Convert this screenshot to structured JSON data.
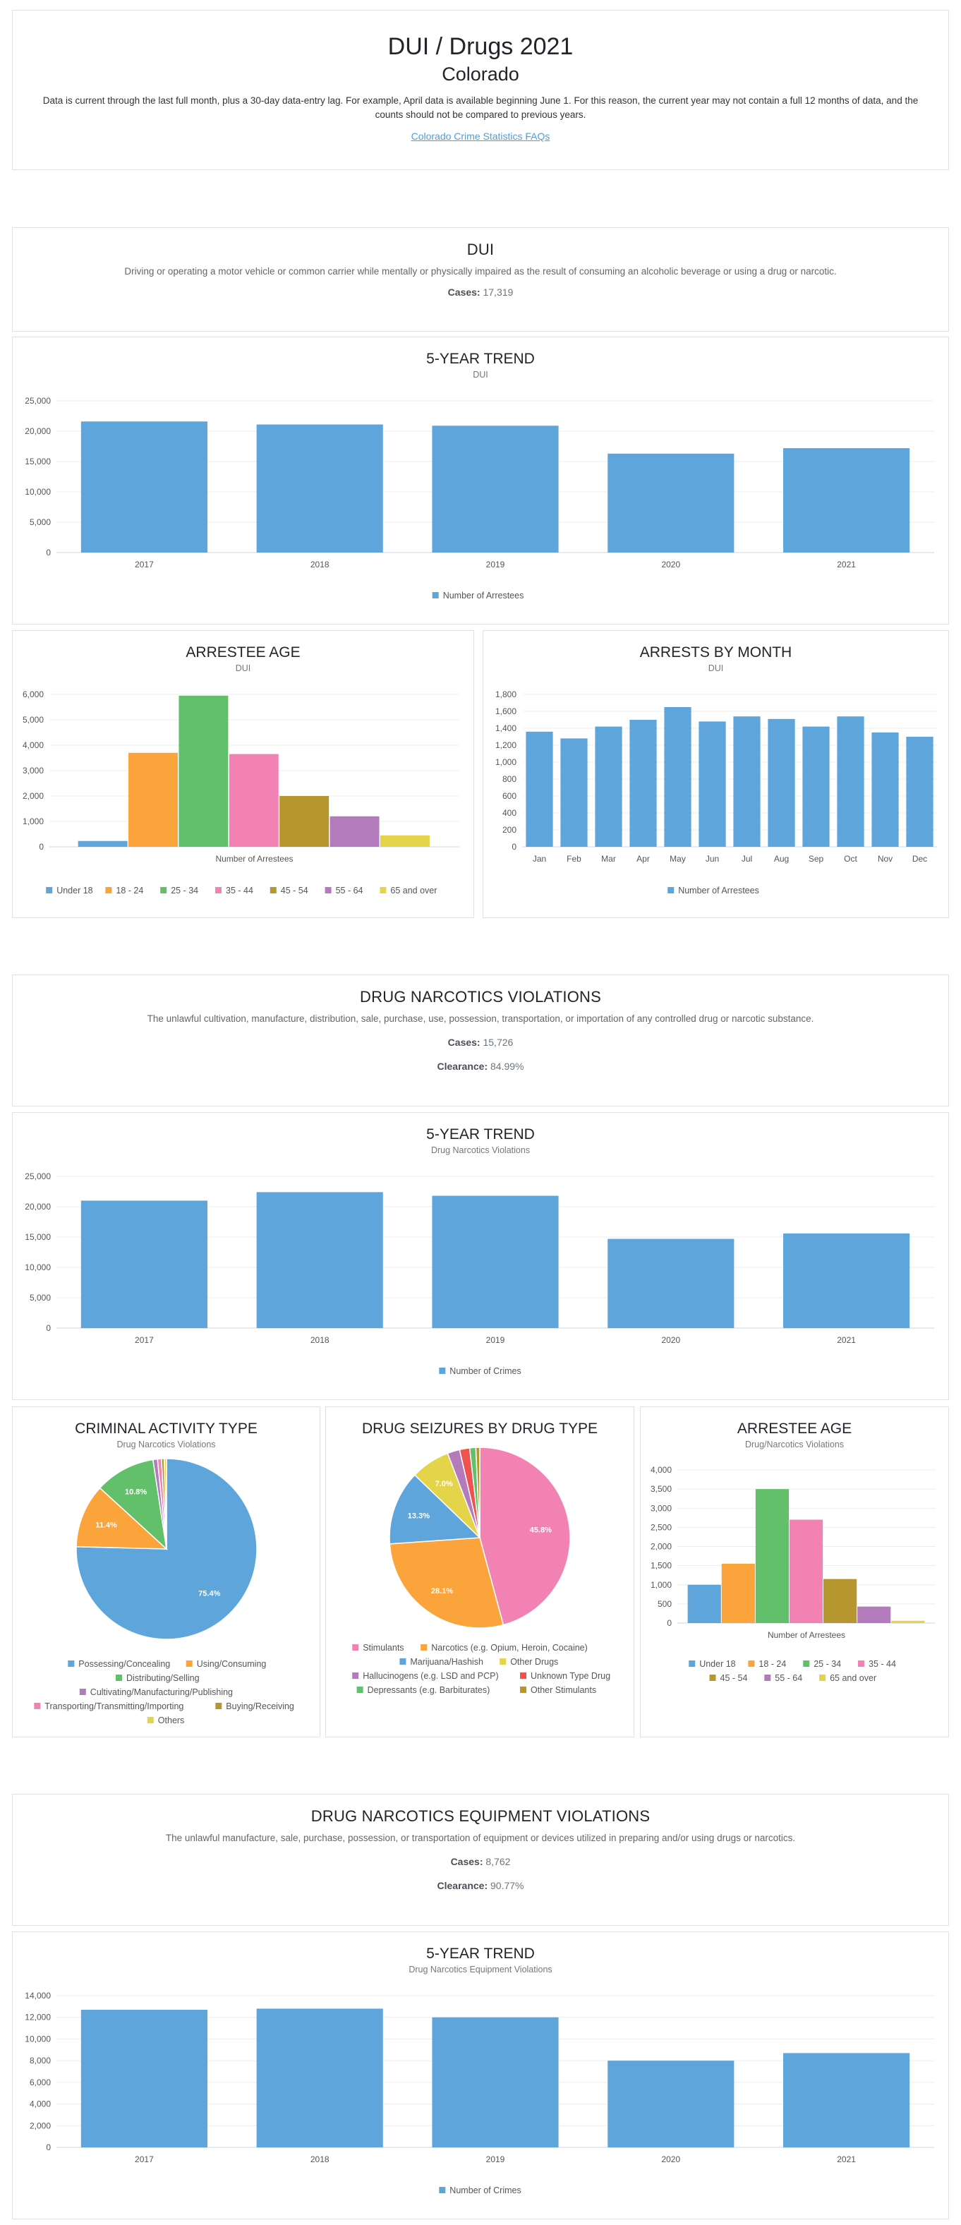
{
  "header": {
    "title": "DUI / Drugs 2021",
    "subtitle": "Colorado",
    "note_line1": "Data is current through the last full month, plus a 30-day data-entry lag. For example, April data is available beginning June 1. For this reason, the current year may not contain a full 12 months of data, and the",
    "note_line2": "counts should not be compared to previous years.",
    "faq_link": "Colorado Crime Statistics FAQs"
  },
  "colors": {
    "blue": "#5ea5db",
    "orange": "#fba43b",
    "green": "#62c06a",
    "pink": "#f382b4",
    "olive": "#b5962f",
    "purple": "#b37bbc",
    "yellow": "#e3d44a",
    "red": "#ef5350",
    "gray": "#999999"
  },
  "sections": {
    "dui": {
      "title": "DUI",
      "description": "Driving or operating a motor vehicle or common carrier while mentally or physically impaired as the result of consuming an alcoholic beverage or using a drug or narcotic.",
      "cases_label": "Cases:",
      "cases_value": "17,319"
    },
    "drug": {
      "title": "DRUG NARCOTICS VIOLATIONS",
      "description": "The unlawful cultivation, manufacture, distribution, sale, purchase, use, possession, transportation, or importation of any controlled drug or narcotic substance.",
      "cases_label": "Cases:",
      "cases_value": "15,726",
      "clearance_label": "Clearance:",
      "clearance_value": "84.99%"
    },
    "equip": {
      "title": "DRUG NARCOTICS EQUIPMENT VIOLATIONS",
      "description": "The unlawful manufacture, sale, purchase, possession, or transportation of equipment or devices utilized in preparing and/or using drugs or narcotics.",
      "cases_label": "Cases:",
      "cases_value": "8,762",
      "clearance_label": "Clearance:",
      "clearance_value": "90.77%"
    }
  },
  "chart_data": [
    {
      "id": "dui_trend",
      "type": "bar",
      "title": "5-YEAR TREND",
      "subtitle": "DUI",
      "categories": [
        "2017",
        "2018",
        "2019",
        "2020",
        "2021"
      ],
      "series": [
        {
          "name": "Number of Arrestees",
          "values": [
            21600,
            21100,
            20900,
            16300,
            17200
          ]
        }
      ],
      "ylim": [
        0,
        25000
      ],
      "yticks": [
        0,
        5000,
        10000,
        15000,
        20000,
        25000
      ],
      "yticklabels": [
        "0",
        "5,000",
        "10,000",
        "15,000",
        "20,000",
        "25,000"
      ],
      "legend": "bottom"
    },
    {
      "id": "dui_age",
      "type": "bar",
      "title": "ARRESTEE AGE",
      "subtitle": "DUI",
      "xlabel": "Number of Arrestees",
      "series": [
        {
          "name": "Under 18",
          "values": [
            230
          ],
          "color": "#5ea5db"
        },
        {
          "name": "18 - 24",
          "values": [
            3700
          ],
          "color": "#fba43b"
        },
        {
          "name": "25 - 34",
          "values": [
            5950
          ],
          "color": "#62c06a"
        },
        {
          "name": "35 - 44",
          "values": [
            3650
          ],
          "color": "#f382b4"
        },
        {
          "name": "45 - 54",
          "values": [
            2000
          ],
          "color": "#b5962f"
        },
        {
          "name": "55 - 64",
          "values": [
            1200
          ],
          "color": "#b37bbc"
        },
        {
          "name": "65 and over",
          "values": [
            450
          ],
          "color": "#e3d44a"
        }
      ],
      "ylim": [
        0,
        6000
      ],
      "yticks": [
        0,
        1000,
        2000,
        3000,
        4000,
        5000,
        6000
      ],
      "yticklabels": [
        "0",
        "1,000",
        "2,000",
        "3,000",
        "4,000",
        "5,000",
        "6,000"
      ],
      "legend": "bottom"
    },
    {
      "id": "dui_month",
      "type": "bar",
      "title": "ARRESTS BY MONTH",
      "subtitle": "DUI",
      "categories": [
        "Jan",
        "Feb",
        "Mar",
        "Apr",
        "May",
        "Jun",
        "Jul",
        "Aug",
        "Sep",
        "Oct",
        "Nov",
        "Dec"
      ],
      "series": [
        {
          "name": "Number of Arrestees",
          "values": [
            1360,
            1280,
            1420,
            1500,
            1650,
            1480,
            1540,
            1510,
            1420,
            1540,
            1350,
            1300
          ]
        }
      ],
      "ylim": [
        0,
        1800
      ],
      "yticks": [
        0,
        200,
        400,
        600,
        800,
        1000,
        1200,
        1400,
        1600,
        1800
      ],
      "yticklabels": [
        "0",
        "200",
        "400",
        "600",
        "800",
        "1,000",
        "1,200",
        "1,400",
        "1,600",
        "1,800"
      ],
      "legend": "bottom"
    },
    {
      "id": "drug_trend",
      "type": "bar",
      "title": "5-YEAR TREND",
      "subtitle": "Drug Narcotics Violations",
      "categories": [
        "2017",
        "2018",
        "2019",
        "2020",
        "2021"
      ],
      "series": [
        {
          "name": "Number of Crimes",
          "values": [
            21000,
            22400,
            21800,
            14700,
            15600
          ]
        }
      ],
      "ylim": [
        0,
        25000
      ],
      "yticks": [
        0,
        5000,
        10000,
        15000,
        20000,
        25000
      ],
      "yticklabels": [
        "0",
        "5,000",
        "10,000",
        "15,000",
        "20,000",
        "25,000"
      ],
      "legend": "bottom"
    },
    {
      "id": "criminal_activity",
      "type": "pie",
      "title": "CRIMINAL ACTIVITY TYPE",
      "subtitle": "Drug Narcotics Violations",
      "slices": [
        {
          "name": "Possessing/Concealing",
          "value": 75.4,
          "label": "75.4%",
          "color": "#5ea5db"
        },
        {
          "name": "Using/Consuming",
          "value": 11.4,
          "label": "11.4%",
          "color": "#fba43b"
        },
        {
          "name": "Distributing/Selling",
          "value": 10.8,
          "label": "10.8%",
          "color": "#62c06a"
        },
        {
          "name": "Cultivating/Manufacturing/Publishing",
          "value": 0.8,
          "label": "",
          "color": "#b37bbc"
        },
        {
          "name": "Transporting/Transmitting/Importing",
          "value": 0.7,
          "label": "",
          "color": "#f382b4"
        },
        {
          "name": "Buying/Receiving",
          "value": 0.5,
          "label": "",
          "color": "#b5962f"
        },
        {
          "name": "Others",
          "value": 0.4,
          "label": "",
          "color": "#e3d44a"
        }
      ],
      "legend": "bottom"
    },
    {
      "id": "drug_seizures",
      "type": "pie",
      "title": "DRUG SEIZURES BY DRUG TYPE",
      "subtitle": "",
      "slices": [
        {
          "name": "Stimulants",
          "value": 45.8,
          "label": "45.8%",
          "color": "#f382b4"
        },
        {
          "name": "Narcotics (e.g. Opium, Heroin, Cocaine)",
          "value": 28.1,
          "label": "28.1%",
          "color": "#fba43b"
        },
        {
          "name": "Marijuana/Hashish",
          "value": 13.3,
          "label": "13.3%",
          "color": "#5ea5db"
        },
        {
          "name": "Other Drugs",
          "value": 7.0,
          "label": "7.0%",
          "color": "#e3d44a"
        },
        {
          "name": "Hallucinogens (e.g. LSD and PCP)",
          "value": 2.2,
          "label": "",
          "color": "#b37bbc"
        },
        {
          "name": "Unknown Type Drug",
          "value": 1.8,
          "label": "",
          "color": "#ef5350"
        },
        {
          "name": "Depressants (e.g. Barbiturates)",
          "value": 1.1,
          "label": "",
          "color": "#62c06a"
        },
        {
          "name": "Other Stimulants",
          "value": 0.7,
          "label": "",
          "color": "#b5962f"
        }
      ],
      "legend": "bottom"
    },
    {
      "id": "drug_age",
      "type": "bar",
      "title": "ARRESTEE AGE",
      "subtitle": "Drug/Narcotics Violations",
      "xlabel": "Number of Arrestees",
      "series": [
        {
          "name": "Under 18",
          "values": [
            1000
          ],
          "color": "#5ea5db"
        },
        {
          "name": "18 - 24",
          "values": [
            1550
          ],
          "color": "#fba43b"
        },
        {
          "name": "25 - 34",
          "values": [
            3500
          ],
          "color": "#62c06a"
        },
        {
          "name": "35 - 44",
          "values": [
            2700
          ],
          "color": "#f382b4"
        },
        {
          "name": "45 - 54",
          "values": [
            1150
          ],
          "color": "#b5962f"
        },
        {
          "name": "55 - 64",
          "values": [
            430
          ],
          "color": "#b37bbc"
        },
        {
          "name": "65 and over",
          "values": [
            60
          ],
          "color": "#e3d44a"
        }
      ],
      "ylim": [
        0,
        4000
      ],
      "yticks": [
        0,
        500,
        1000,
        1500,
        2000,
        2500,
        3000,
        3500,
        4000
      ],
      "yticklabels": [
        "0",
        "500",
        "1,000",
        "1,500",
        "2,000",
        "2,500",
        "3,000",
        "3,500",
        "4,000"
      ],
      "legend": "bottom"
    },
    {
      "id": "equip_trend",
      "type": "bar",
      "title": "5-YEAR TREND",
      "subtitle": "Drug Narcotics Equipment Violations",
      "categories": [
        "2017",
        "2018",
        "2019",
        "2020",
        "2021"
      ],
      "series": [
        {
          "name": "Number of Crimes",
          "values": [
            12700,
            12800,
            12000,
            8000,
            8700
          ]
        }
      ],
      "ylim": [
        0,
        14000
      ],
      "yticks": [
        0,
        2000,
        4000,
        6000,
        8000,
        10000,
        12000,
        14000
      ],
      "yticklabels": [
        "0",
        "2,000",
        "4,000",
        "6,000",
        "8,000",
        "10,000",
        "12,000",
        "14,000"
      ],
      "legend": "bottom"
    }
  ]
}
